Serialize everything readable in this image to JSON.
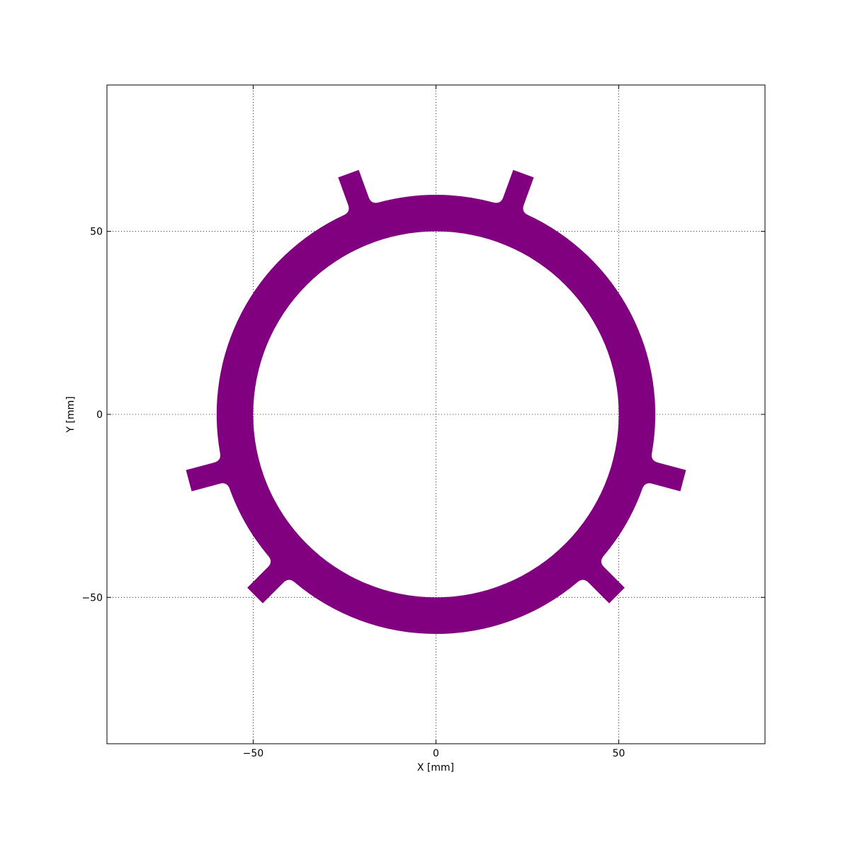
{
  "chart_data": {
    "type": "area",
    "xlabel": "X [mm]",
    "ylabel": "Y [mm]",
    "xlim": [
      -90,
      90
    ],
    "ylim": [
      -90,
      90
    ],
    "grid": true,
    "fill_color": "#800080",
    "xticks": [
      -50,
      0,
      50
    ],
    "yticks": [
      -50,
      0,
      50
    ],
    "xtick_labels": [
      "−50",
      "0",
      "50"
    ],
    "ytick_labels": [
      "−50",
      "0",
      "50"
    ],
    "series": [
      {
        "shape": "annulus",
        "center": [
          0,
          0
        ],
        "inner_radius": 50,
        "outer_radius": 60
      },
      {
        "shape": "radial-tabs",
        "tab_center_angles_deg": [
          70,
          110,
          195,
          225,
          315,
          345
        ],
        "tab_outer_radius": 70,
        "tab_width": 6,
        "fillet_radius": 2
      }
    ]
  }
}
